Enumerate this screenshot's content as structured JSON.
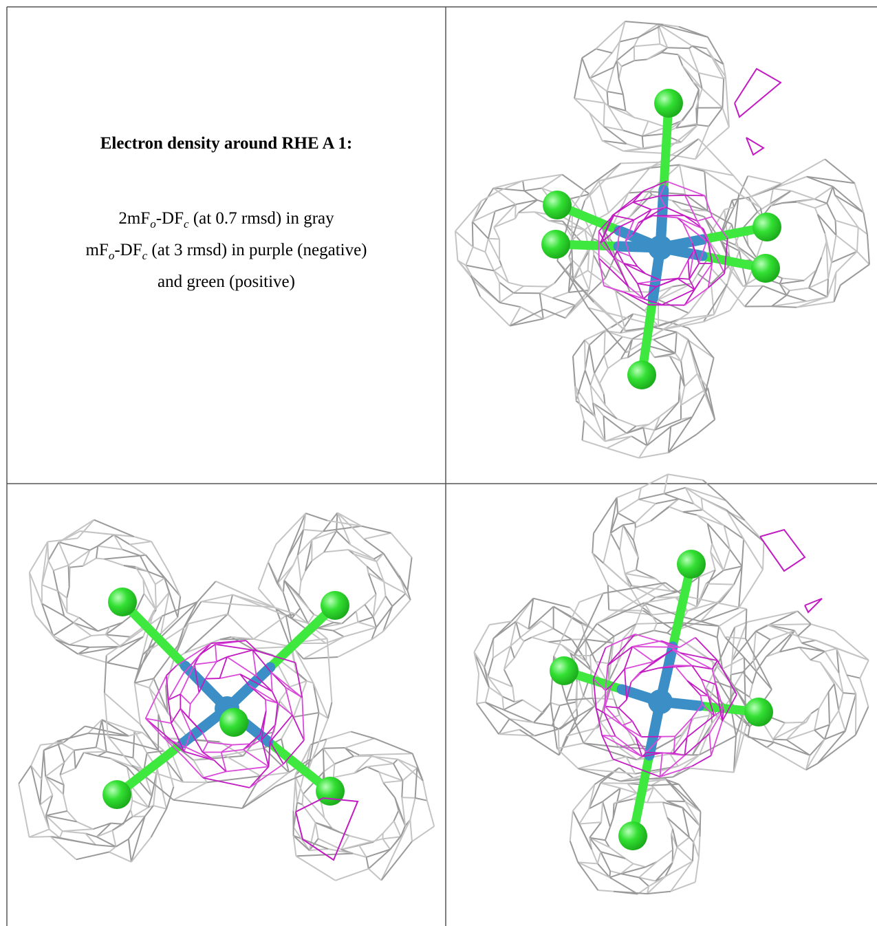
{
  "caption": {
    "title": "Electron density around RHE A 1:",
    "lines": [
      [
        "2mF",
        "o",
        "-DF",
        "c",
        " (at 0.7 rmsd) in gray"
      ],
      [
        "mF",
        "o",
        "-DF",
        "c",
        " (at 3 rmsd) in purple (negative)"
      ],
      [
        "and green (positive)"
      ]
    ]
  }
}
